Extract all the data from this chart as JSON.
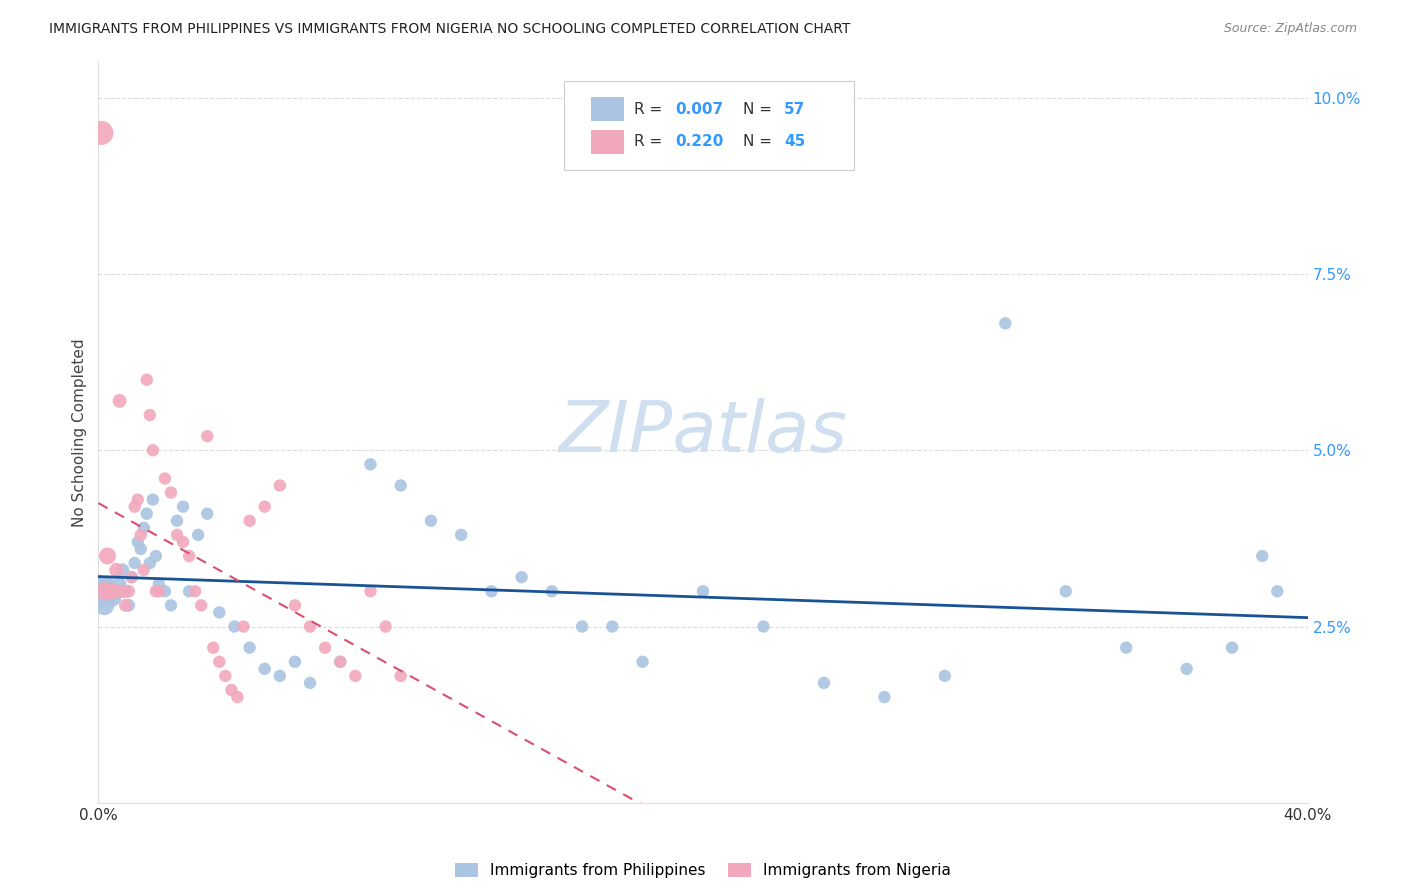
{
  "title": "IMMIGRANTS FROM PHILIPPINES VS IMMIGRANTS FROM NIGERIA NO SCHOOLING COMPLETED CORRELATION CHART",
  "source": "Source: ZipAtlas.com",
  "ylabel_label": "No Schooling Completed",
  "xlim": [
    0.0,
    0.4
  ],
  "ylim": [
    0.0,
    0.105
  ],
  "philippines_R": 0.007,
  "philippines_N": 57,
  "nigeria_R": 0.22,
  "nigeria_N": 45,
  "philippines_color": "#aac4e2",
  "nigeria_color": "#f2a8bc",
  "philippines_line_color": "#1a5296",
  "nigeria_line_color": "#d94f70",
  "watermark_color": "#d0dff0",
  "grid_color": "#dddddd",
  "right_tick_color": "#3399ff",
  "philippines_x": [
    0.001,
    0.002,
    0.003,
    0.004,
    0.005,
    0.006,
    0.007,
    0.008,
    0.009,
    0.01,
    0.011,
    0.012,
    0.013,
    0.014,
    0.015,
    0.016,
    0.017,
    0.018,
    0.019,
    0.02,
    0.022,
    0.024,
    0.026,
    0.028,
    0.03,
    0.033,
    0.036,
    0.04,
    0.045,
    0.05,
    0.055,
    0.06,
    0.065,
    0.07,
    0.08,
    0.09,
    0.1,
    0.11,
    0.12,
    0.13,
    0.14,
    0.15,
    0.16,
    0.17,
    0.18,
    0.2,
    0.22,
    0.24,
    0.26,
    0.28,
    0.3,
    0.32,
    0.34,
    0.36,
    0.375,
    0.385,
    0.39
  ],
  "philippines_y": [
    0.03,
    0.028,
    0.031,
    0.03,
    0.029,
    0.03,
    0.031,
    0.033,
    0.03,
    0.028,
    0.032,
    0.034,
    0.037,
    0.036,
    0.039,
    0.041,
    0.034,
    0.043,
    0.035,
    0.031,
    0.03,
    0.028,
    0.04,
    0.042,
    0.03,
    0.038,
    0.041,
    0.027,
    0.025,
    0.022,
    0.019,
    0.018,
    0.02,
    0.017,
    0.02,
    0.048,
    0.045,
    0.04,
    0.038,
    0.03,
    0.032,
    0.03,
    0.025,
    0.025,
    0.02,
    0.03,
    0.025,
    0.017,
    0.015,
    0.018,
    0.068,
    0.03,
    0.022,
    0.019,
    0.022,
    0.035,
    0.03
  ],
  "philippines_sizes": [
    500,
    200,
    150,
    130,
    120,
    110,
    100,
    95,
    90,
    85,
    80,
    80,
    80,
    80,
    80,
    80,
    80,
    80,
    80,
    80,
    80,
    80,
    80,
    80,
    80,
    80,
    80,
    80,
    80,
    80,
    80,
    80,
    80,
    80,
    80,
    80,
    80,
    80,
    80,
    80,
    80,
    80,
    80,
    80,
    80,
    80,
    80,
    80,
    80,
    80,
    80,
    80,
    80,
    80,
    80,
    80,
    80
  ],
  "nigeria_x": [
    0.001,
    0.002,
    0.003,
    0.004,
    0.005,
    0.006,
    0.007,
    0.008,
    0.009,
    0.01,
    0.011,
    0.012,
    0.013,
    0.014,
    0.015,
    0.016,
    0.017,
    0.018,
    0.019,
    0.02,
    0.022,
    0.024,
    0.026,
    0.028,
    0.03,
    0.032,
    0.034,
    0.036,
    0.038,
    0.04,
    0.042,
    0.044,
    0.046,
    0.048,
    0.05,
    0.055,
    0.06,
    0.065,
    0.07,
    0.075,
    0.08,
    0.085,
    0.09,
    0.095,
    0.1
  ],
  "nigeria_y": [
    0.095,
    0.03,
    0.035,
    0.03,
    0.03,
    0.033,
    0.057,
    0.03,
    0.028,
    0.03,
    0.032,
    0.042,
    0.043,
    0.038,
    0.033,
    0.06,
    0.055,
    0.05,
    0.03,
    0.03,
    0.046,
    0.044,
    0.038,
    0.037,
    0.035,
    0.03,
    0.028,
    0.052,
    0.022,
    0.02,
    0.018,
    0.016,
    0.015,
    0.025,
    0.04,
    0.042,
    0.045,
    0.028,
    0.025,
    0.022,
    0.02,
    0.018,
    0.03,
    0.025,
    0.018
  ],
  "nigeria_sizes": [
    300,
    180,
    150,
    130,
    120,
    110,
    100,
    95,
    90,
    85,
    80,
    80,
    80,
    80,
    80,
    80,
    80,
    80,
    80,
    80,
    80,
    80,
    80,
    80,
    80,
    80,
    80,
    80,
    80,
    80,
    80,
    80,
    80,
    80,
    80,
    80,
    80,
    80,
    80,
    80,
    80,
    80,
    80,
    80,
    80
  ]
}
